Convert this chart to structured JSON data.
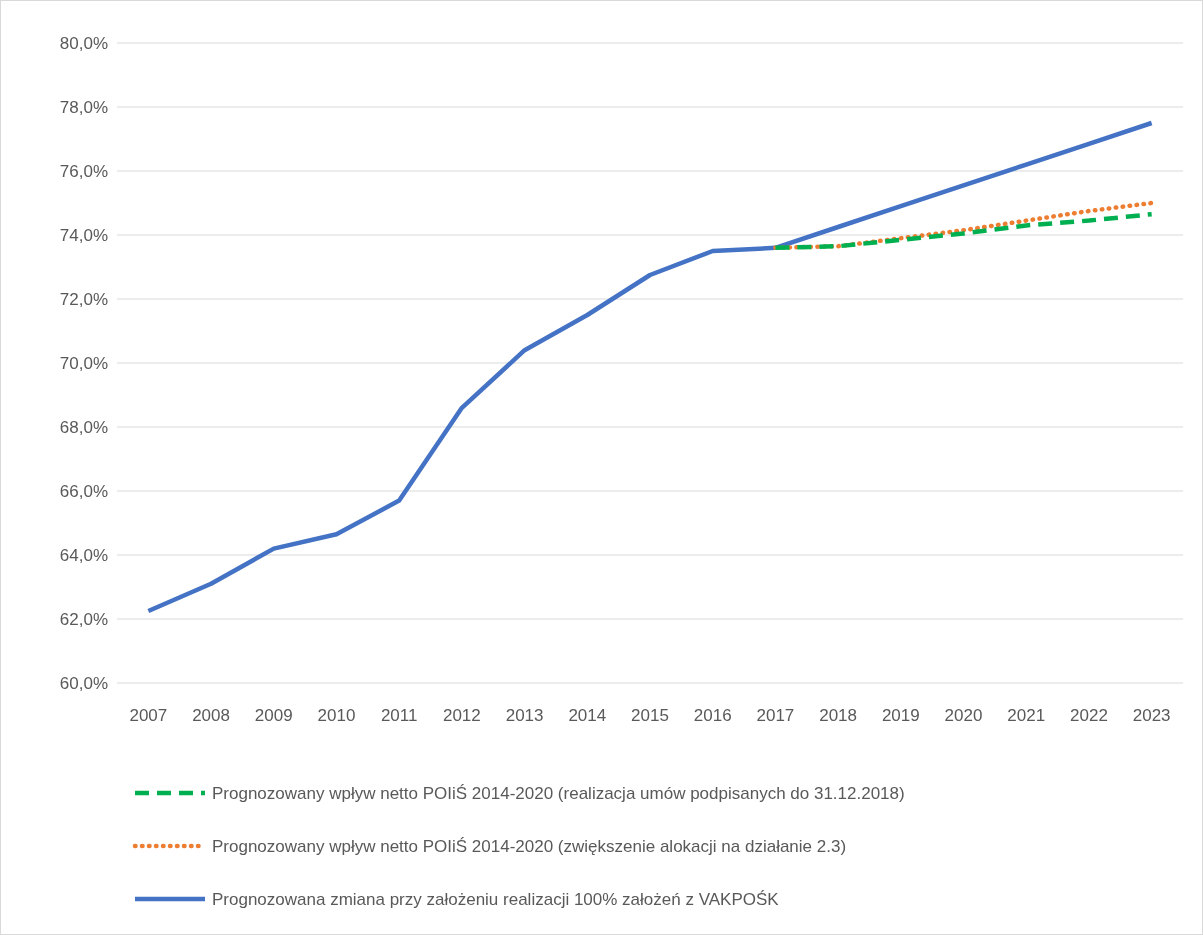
{
  "chart_data": {
    "type": "line",
    "categories": [
      "2007",
      "2008",
      "2009",
      "2010",
      "2011",
      "2012",
      "2013",
      "2014",
      "2015",
      "2016",
      "2017",
      "2018",
      "2019",
      "2020",
      "2021",
      "2022",
      "2023"
    ],
    "series": [
      {
        "name": "Prognozowany wpływ netto POIiŚ 2014-2020 (realizacja umów podpisanych do 31.12.2018)",
        "color": "#00b050",
        "line_style": "dashed",
        "values": [
          null,
          null,
          null,
          null,
          null,
          null,
          null,
          null,
          null,
          null,
          73.6,
          73.65,
          73.85,
          74.05,
          74.3,
          74.45,
          74.65
        ]
      },
      {
        "name": "Prognozowany wpływ netto POIiŚ 2014-2020 (zwiększenie alokacji na działanie 2.3)",
        "color": "#ed7d31",
        "line_style": "dotted",
        "values": [
          null,
          null,
          null,
          null,
          null,
          null,
          null,
          null,
          null,
          null,
          73.6,
          73.65,
          73.9,
          74.15,
          74.45,
          74.75,
          75.0
        ]
      },
      {
        "name": "Prognozowana zmiana przy założeniu realizacji 100% założeń z VAKPOŚK",
        "color": "#4472c4",
        "line_style": "solid",
        "values": [
          62.25,
          63.1,
          64.2,
          64.65,
          65.7,
          68.6,
          70.4,
          71.5,
          72.75,
          73.5,
          73.6,
          74.25,
          74.9,
          75.55,
          76.2,
          76.85,
          77.5
        ]
      }
    ],
    "ylim": [
      60,
      80
    ],
    "yticks": [
      {
        "value": 60,
        "label": "60,0%"
      },
      {
        "value": 62,
        "label": "62,0%"
      },
      {
        "value": 64,
        "label": "64,0%"
      },
      {
        "value": 66,
        "label": "66,0%"
      },
      {
        "value": 68,
        "label": "68,0%"
      },
      {
        "value": 70,
        "label": "70,0%"
      },
      {
        "value": 72,
        "label": "72,0%"
      },
      {
        "value": 74,
        "label": "74,0%"
      },
      {
        "value": 76,
        "label": "76,0%"
      },
      {
        "value": 78,
        "label": "78,0%"
      },
      {
        "value": 80,
        "label": "80,0%"
      }
    ],
    "grid": "y",
    "legend": "bottom",
    "marker": "none"
  }
}
